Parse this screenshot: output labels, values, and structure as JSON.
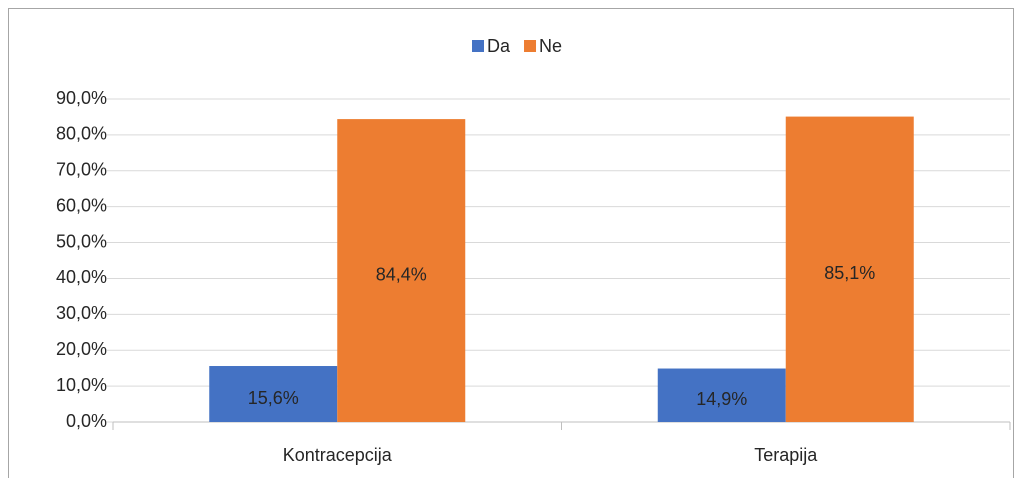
{
  "chart_data": {
    "type": "bar",
    "categories": [
      "Kontracepcija",
      "Terapija"
    ],
    "series": [
      {
        "name": "Da",
        "color": "#4472c4",
        "values": [
          15.6,
          14.9
        ],
        "value_labels": [
          "15,6%",
          "14,9%"
        ]
      },
      {
        "name": "Ne",
        "color": "#ed7d31",
        "values": [
          84.4,
          85.1
        ],
        "value_labels": [
          "84,4%",
          "85,1%"
        ]
      }
    ],
    "ylim": [
      0,
      90
    ],
    "yticks": [
      {
        "value": 0,
        "label": "0,0%"
      },
      {
        "value": 10,
        "label": "10,0%"
      },
      {
        "value": 20,
        "label": "20,0%"
      },
      {
        "value": 30,
        "label": "30,0%"
      },
      {
        "value": 40,
        "label": "40,0%"
      },
      {
        "value": 50,
        "label": "50,0%"
      },
      {
        "value": 60,
        "label": "60,0%"
      },
      {
        "value": 70,
        "label": "70,0%"
      },
      {
        "value": 80,
        "label": "80,0%"
      },
      {
        "value": 90,
        "label": "90,0%"
      }
    ],
    "grid": true,
    "legend": "top"
  }
}
